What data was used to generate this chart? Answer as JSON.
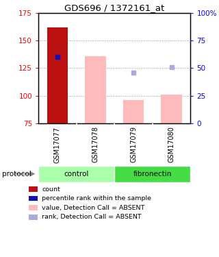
{
  "title": "GDS696 / 1372161_at",
  "samples": [
    "GSM17077",
    "GSM17078",
    "GSM17079",
    "GSM17080"
  ],
  "ylim_left": [
    75,
    175
  ],
  "ylim_right": [
    0,
    100
  ],
  "yticks_left": [
    75,
    100,
    125,
    150,
    175
  ],
  "yticks_right": [
    0,
    25,
    50,
    75,
    100
  ],
  "ytick_labels_right": [
    "0",
    "25",
    "50",
    "75",
    "100%"
  ],
  "red_bar": {
    "x": 0,
    "value": 162,
    "color": "#bb1111"
  },
  "blue_square": {
    "x": 0,
    "value": 135,
    "color": "#1111bb"
  },
  "pink_bars": [
    {
      "x": 1,
      "value": 136,
      "color": "#ffbbbb"
    },
    {
      "x": 2,
      "value": 96,
      "color": "#ffbbbb"
    },
    {
      "x": 3,
      "value": 101,
      "color": "#ffbbbb"
    }
  ],
  "blue_squares_absent": [
    {
      "x": 2,
      "value": 121,
      "color": "#aaaadd"
    },
    {
      "x": 3,
      "value": 126,
      "color": "#aaaadd"
    }
  ],
  "bar_width": 0.55,
  "bg_label": "#cccccc",
  "dotted_line_color": "#999999",
  "legend_items": [
    {
      "color": "#bb1111",
      "label": "count"
    },
    {
      "color": "#1111bb",
      "label": "percentile rank within the sample"
    },
    {
      "color": "#ffbbbb",
      "label": "value, Detection Call = ABSENT"
    },
    {
      "color": "#aaaadd",
      "label": "rank, Detection Call = ABSENT"
    }
  ],
  "control_color": "#aaffaa",
  "fibronectin_color": "#44dd44"
}
